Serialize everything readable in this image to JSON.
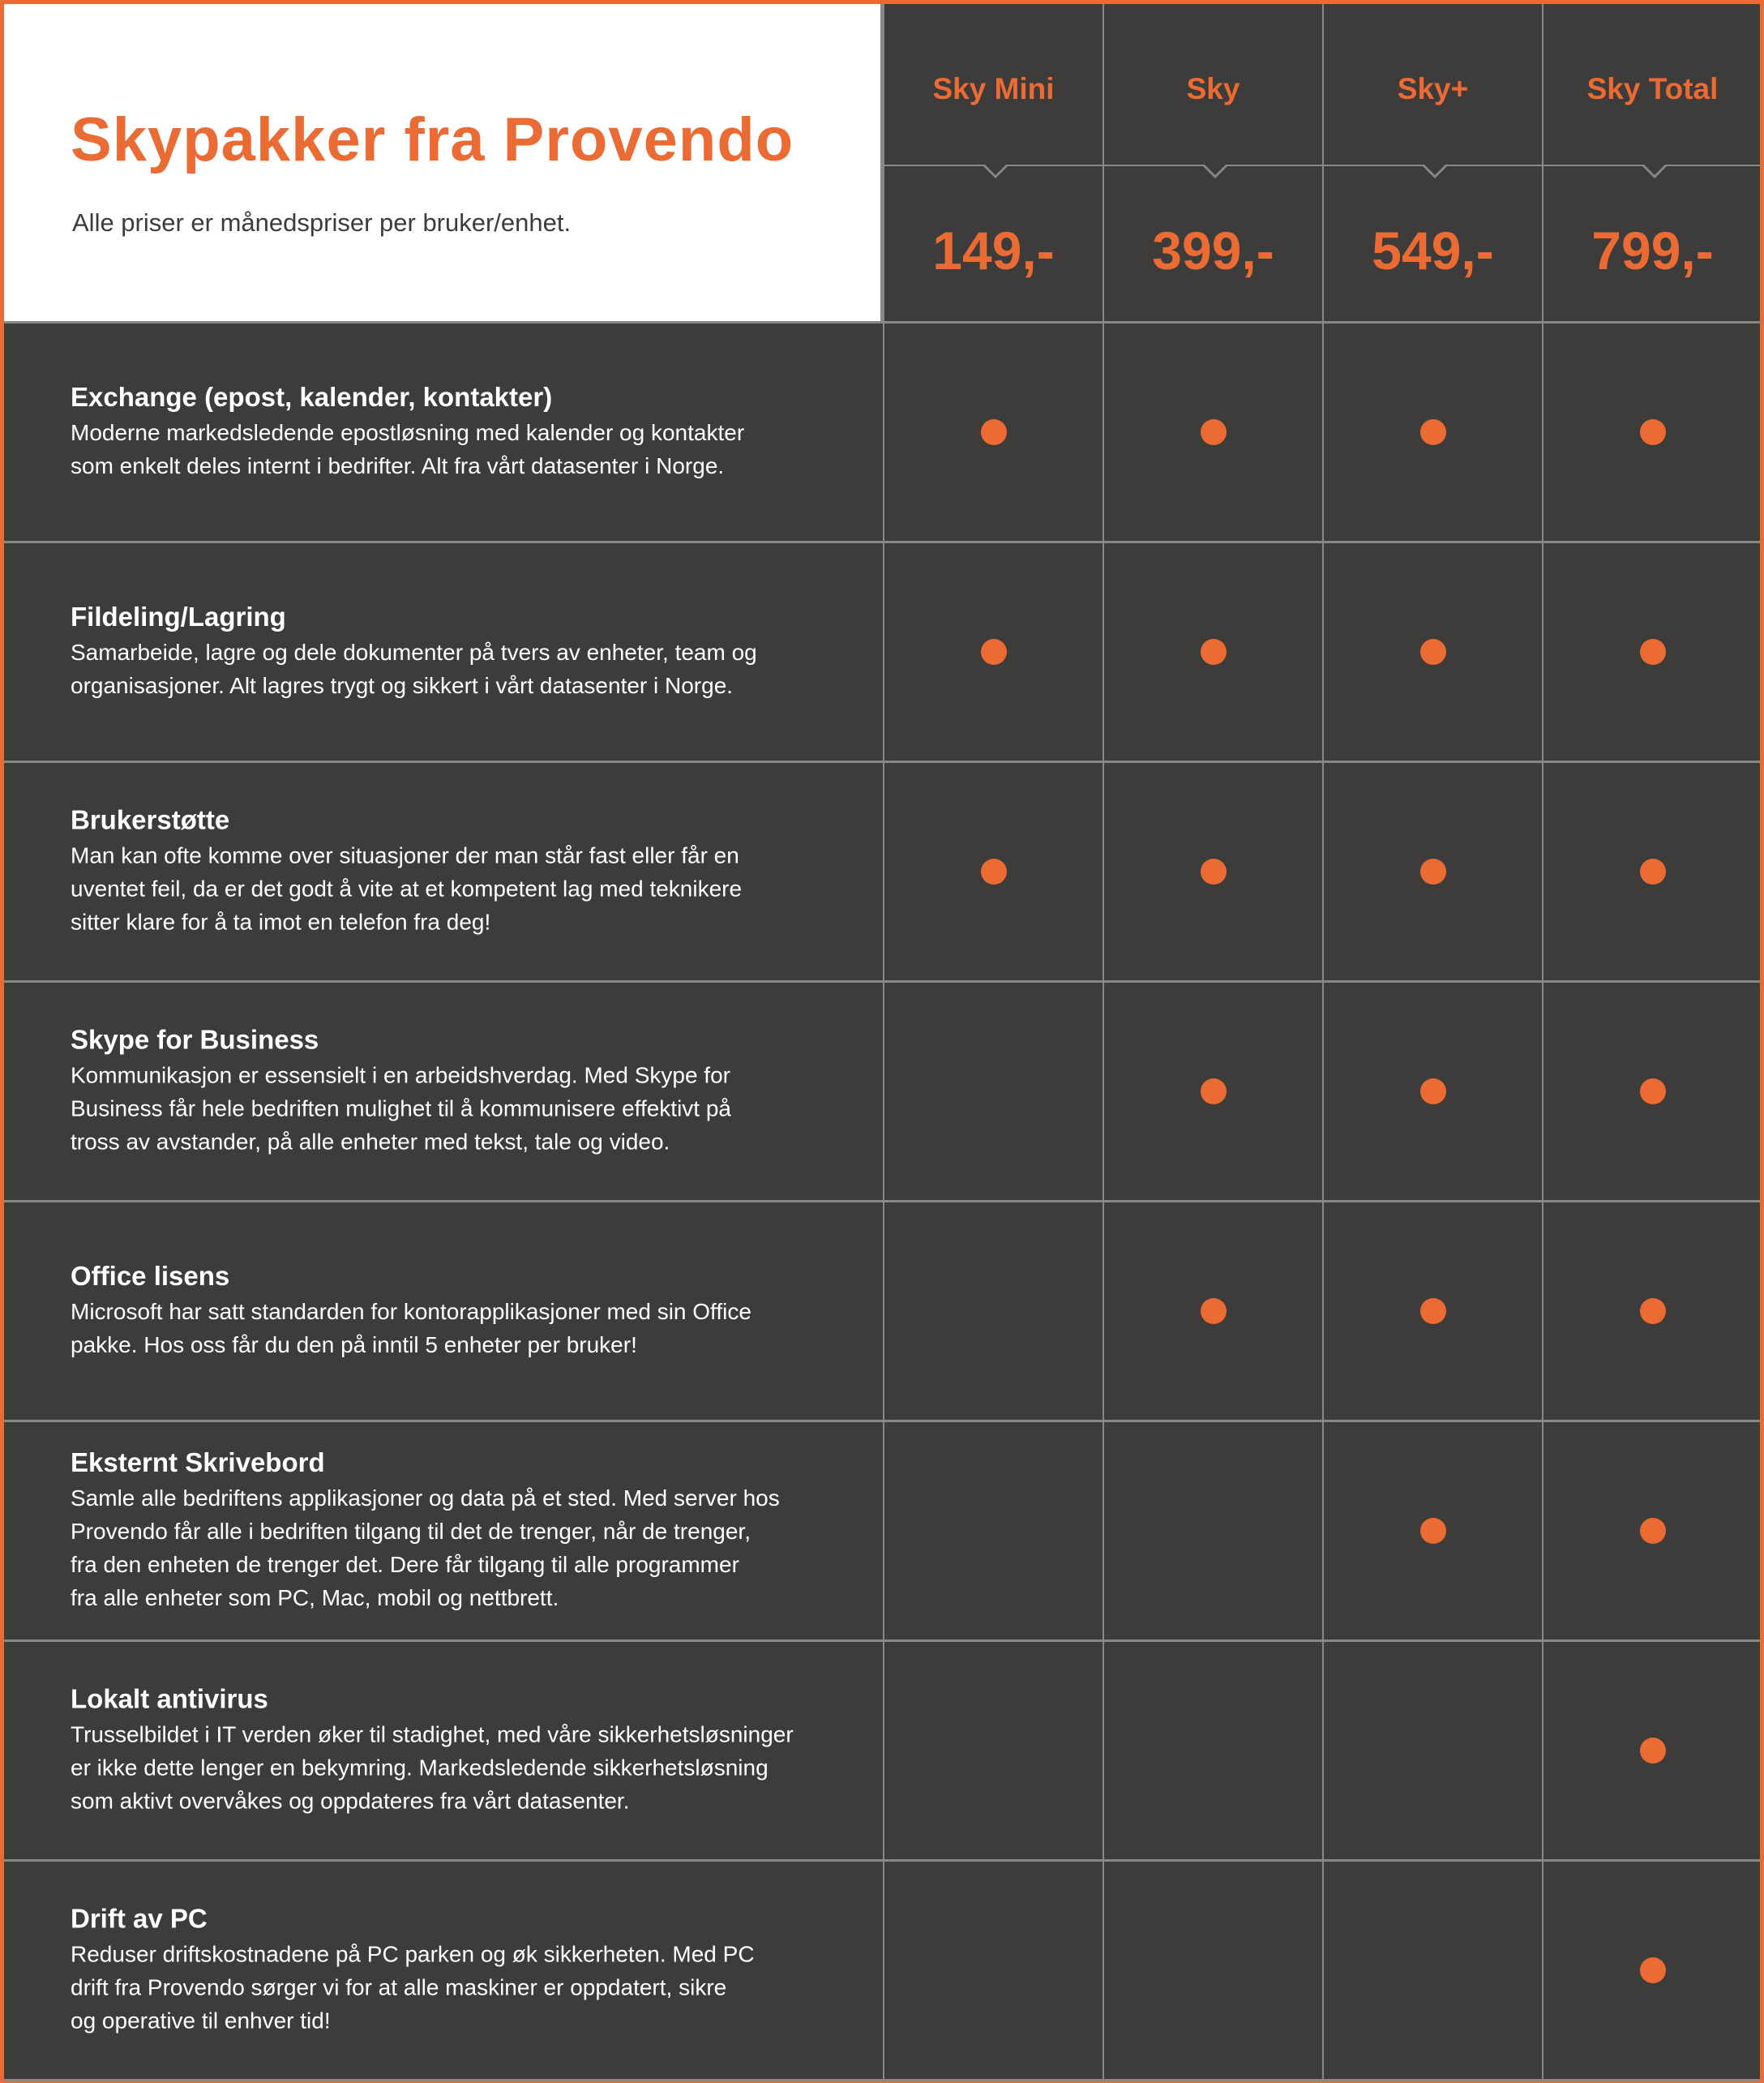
{
  "header": {
    "title": "Skypakker fra Provendo",
    "subtitle": "Alle priser er månedspriser per bruker/enhet."
  },
  "plans": [
    {
      "name": "Sky Mini",
      "price": "149,-"
    },
    {
      "name": "Sky",
      "price": "399,-"
    },
    {
      "name": "Sky+",
      "price": "549,-"
    },
    {
      "name": "Sky Total",
      "price": "799,-"
    }
  ],
  "features": [
    {
      "title": "Exchange (epost, kalender, kontakter)",
      "lines": [
        "Moderne markedsledende epostløsning med kalender og kontakter",
        "som enkelt deles internt i bedrifter. Alt fra vårt datasenter i Norge."
      ],
      "included": [
        true,
        true,
        true,
        true
      ]
    },
    {
      "title": "Fildeling/Lagring",
      "lines": [
        "Samarbeide, lagre og dele dokumenter på tvers av enheter, team og",
        "organisasjoner. Alt lagres trygt og sikkert i vårt datasenter i Norge."
      ],
      "included": [
        true,
        true,
        true,
        true
      ]
    },
    {
      "title": "Brukerstøtte",
      "lines": [
        "Man kan ofte komme over situasjoner der man står fast eller får en",
        "uventet feil, da er det godt å vite at et kompetent lag med teknikere",
        "sitter klare for å ta imot en telefon fra deg!"
      ],
      "included": [
        true,
        true,
        true,
        true
      ]
    },
    {
      "title": "Skype for Business",
      "lines": [
        "Kommunikasjon er essensielt i en arbeidshverdag. Med Skype for",
        "Business får hele bedriften mulighet til å kommunisere effektivt på",
        "tross av avstander, på alle enheter med tekst, tale og video."
      ],
      "included": [
        false,
        true,
        true,
        true
      ]
    },
    {
      "title": "Office lisens",
      "lines": [
        "Microsoft har satt standarden for kontorapplikasjoner med sin Office",
        "pakke. Hos oss får du den på inntil 5 enheter per bruker!"
      ],
      "included": [
        false,
        true,
        true,
        true
      ]
    },
    {
      "title": "Eksternt Skrivebord",
      "lines": [
        "Samle alle bedriftens applikasjoner og data på et sted. Med server hos",
        "Provendo får alle i bedriften tilgang til det de trenger, når de trenger,",
        "fra den enheten de trenger det. Dere får tilgang til alle programmer",
        "fra alle enheter som PC, Mac, mobil og nettbrett."
      ],
      "included": [
        false,
        false,
        true,
        true
      ]
    },
    {
      "title": "Lokalt antivirus",
      "lines": [
        "Trusselbildet i IT verden øker til stadighet, med våre sikkerhetsløsninger",
        "er ikke dette lenger en bekymring. Markedsledende sikkerhetsløsning",
        "som aktivt overvåkes og oppdateres fra vårt datasenter."
      ],
      "included": [
        false,
        false,
        false,
        true
      ]
    },
    {
      "title": "Drift av PC",
      "lines": [
        "Reduser driftskostnadene på PC parken og øk sikkerheten. Med PC",
        "drift fra Provendo sørger vi for at alle maskiner er oppdatert, sikre",
        "og operative til enhver tid!"
      ],
      "included": [
        false,
        false,
        false,
        true
      ]
    }
  ],
  "colors": {
    "accent": "#ea6b34",
    "background": "#3d3c3b",
    "grid_line": "#8a8886",
    "text_light": "#ffffff"
  }
}
